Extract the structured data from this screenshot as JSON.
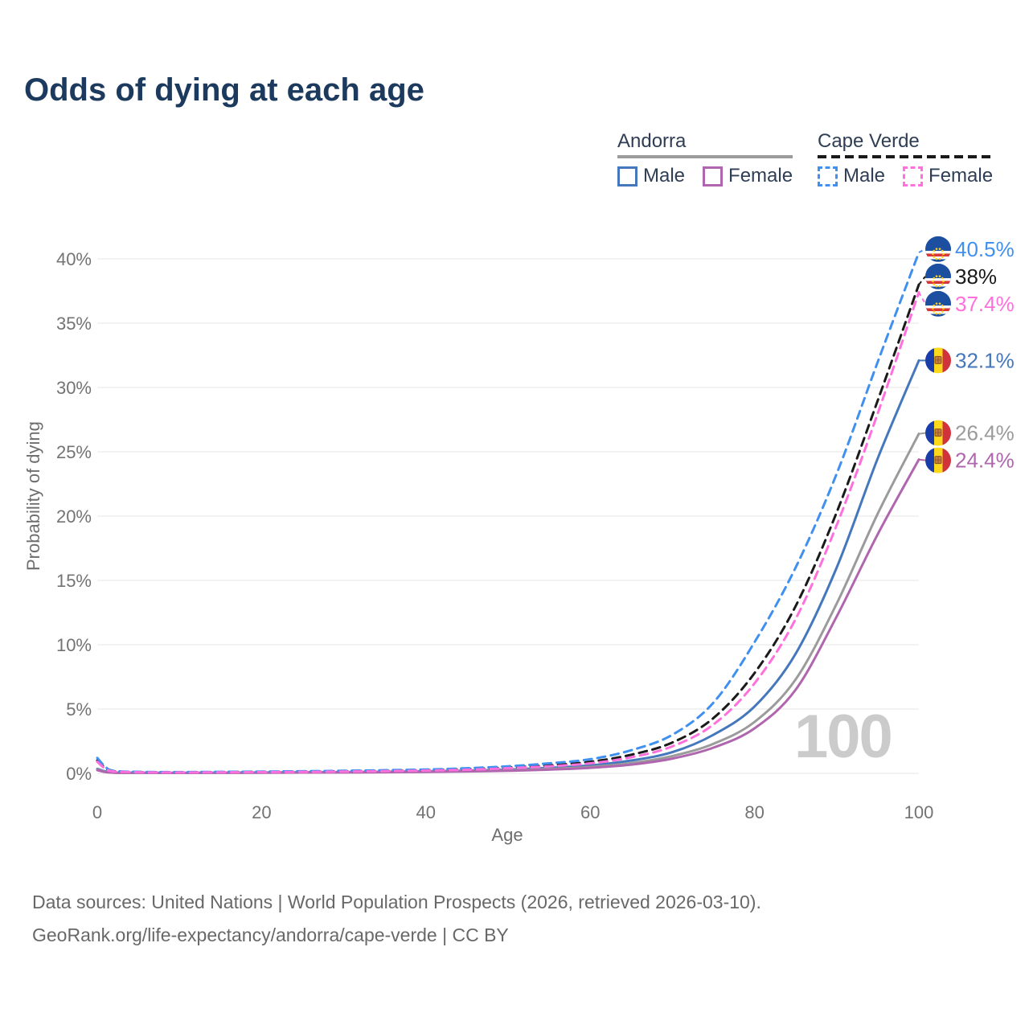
{
  "page": {
    "title": "Odds of dying at each age",
    "watermark_age": "100"
  },
  "legend": {
    "groups": [
      {
        "country": "Andorra",
        "line_style": "solid",
        "line_color": "#9b9b9b",
        "items": [
          {
            "label": "Male",
            "color": "#4477bb",
            "style": "solid"
          },
          {
            "label": "Female",
            "color": "#b066ae",
            "style": "solid"
          }
        ]
      },
      {
        "country": "Cape Verde",
        "line_style": "dashed",
        "line_color": "#1a1a1a",
        "items": [
          {
            "label": "Male",
            "color": "#4090f0",
            "style": "dashed"
          },
          {
            "label": "Female",
            "color": "#ff70dd",
            "style": "dashed"
          }
        ]
      }
    ]
  },
  "axes": {
    "y_title": "Probability of dying",
    "x_title": "Age",
    "y_ticks": [
      "0%",
      "5%",
      "10%",
      "15%",
      "20%",
      "25%",
      "30%",
      "35%",
      "40%"
    ],
    "x_ticks": [
      "0",
      "20",
      "40",
      "60",
      "80",
      "100"
    ]
  },
  "footer": {
    "line1": "Data sources: United Nations | World Population Prospects (2026, retrieved 2026-03-10).",
    "line2": "GeoRank.org/life-expectancy/andorra/cape-verde | CC BY"
  },
  "chart_data": {
    "type": "line",
    "title": "Odds of dying at each age",
    "xlabel": "Age",
    "ylabel": "Probability of dying",
    "y_unit": "percent",
    "xlim": [
      0,
      100
    ],
    "ylim": [
      0,
      42
    ],
    "grid": "horizontal",
    "legend_position": "top-right",
    "ages": [
      0,
      1,
      2,
      5,
      10,
      20,
      30,
      40,
      45,
      50,
      55,
      60,
      65,
      70,
      75,
      80,
      85,
      90,
      95,
      100
    ],
    "series": [
      {
        "name": "Cape Verde Male",
        "country": "Cape Verde",
        "sex": "male",
        "style": "dashed",
        "color": "#4090f0",
        "flag": "cv",
        "end_label": "40.5%",
        "values": [
          1.2,
          0.5,
          0.2,
          0.12,
          0.1,
          0.14,
          0.2,
          0.3,
          0.4,
          0.55,
          0.78,
          1.1,
          1.8,
          3.0,
          5.5,
          10.2,
          16.0,
          23.3,
          32.0,
          40.5
        ]
      },
      {
        "name": "Cape Verde Both sexes",
        "country": "Cape Verde",
        "sex": "combined",
        "style": "dashed",
        "color": "#1a1a1a",
        "flag": "cv",
        "end_label": "38%",
        "values": [
          1.0,
          0.4,
          0.17,
          0.1,
          0.08,
          0.12,
          0.16,
          0.25,
          0.33,
          0.45,
          0.62,
          0.9,
          1.45,
          2.4,
          4.3,
          7.8,
          13.0,
          20.3,
          29.0,
          38.0
        ]
      },
      {
        "name": "Cape Verde Female",
        "country": "Cape Verde",
        "sex": "female",
        "style": "dashed",
        "color": "#ff70dd",
        "flag": "cv",
        "end_label": "37.4%",
        "values": [
          0.9,
          0.35,
          0.15,
          0.09,
          0.07,
          0.1,
          0.14,
          0.22,
          0.28,
          0.4,
          0.55,
          0.78,
          1.25,
          2.1,
          3.8,
          7.0,
          12.0,
          19.3,
          28.0,
          37.4
        ]
      },
      {
        "name": "Andorra Male",
        "country": "Andorra",
        "sex": "male",
        "style": "solid",
        "color": "#4477bb",
        "flag": "ad",
        "end_label": "32.1%",
        "values": [
          0.35,
          0.15,
          0.07,
          0.05,
          0.04,
          0.07,
          0.1,
          0.16,
          0.22,
          0.3,
          0.43,
          0.62,
          1.0,
          1.65,
          3.0,
          5.2,
          9.3,
          16.0,
          24.5,
          32.1
        ]
      },
      {
        "name": "Andorra Both sexes",
        "country": "Andorra",
        "sex": "combined",
        "style": "solid",
        "color": "#9b9b9b",
        "flag": "ad",
        "end_label": "26.4%",
        "values": [
          0.3,
          0.12,
          0.06,
          0.045,
          0.035,
          0.055,
          0.08,
          0.13,
          0.18,
          0.24,
          0.35,
          0.5,
          0.8,
          1.35,
          2.3,
          4.0,
          7.3,
          13.2,
          20.2,
          26.4
        ]
      },
      {
        "name": "Andorra Female",
        "country": "Andorra",
        "sex": "female",
        "style": "solid",
        "color": "#b066ae",
        "flag": "ad",
        "end_label": "24.4%",
        "values": [
          0.25,
          0.1,
          0.05,
          0.04,
          0.03,
          0.05,
          0.07,
          0.11,
          0.15,
          0.2,
          0.29,
          0.43,
          0.68,
          1.15,
          2.0,
          3.5,
          6.5,
          12.2,
          18.6,
          24.4
        ]
      }
    ]
  }
}
